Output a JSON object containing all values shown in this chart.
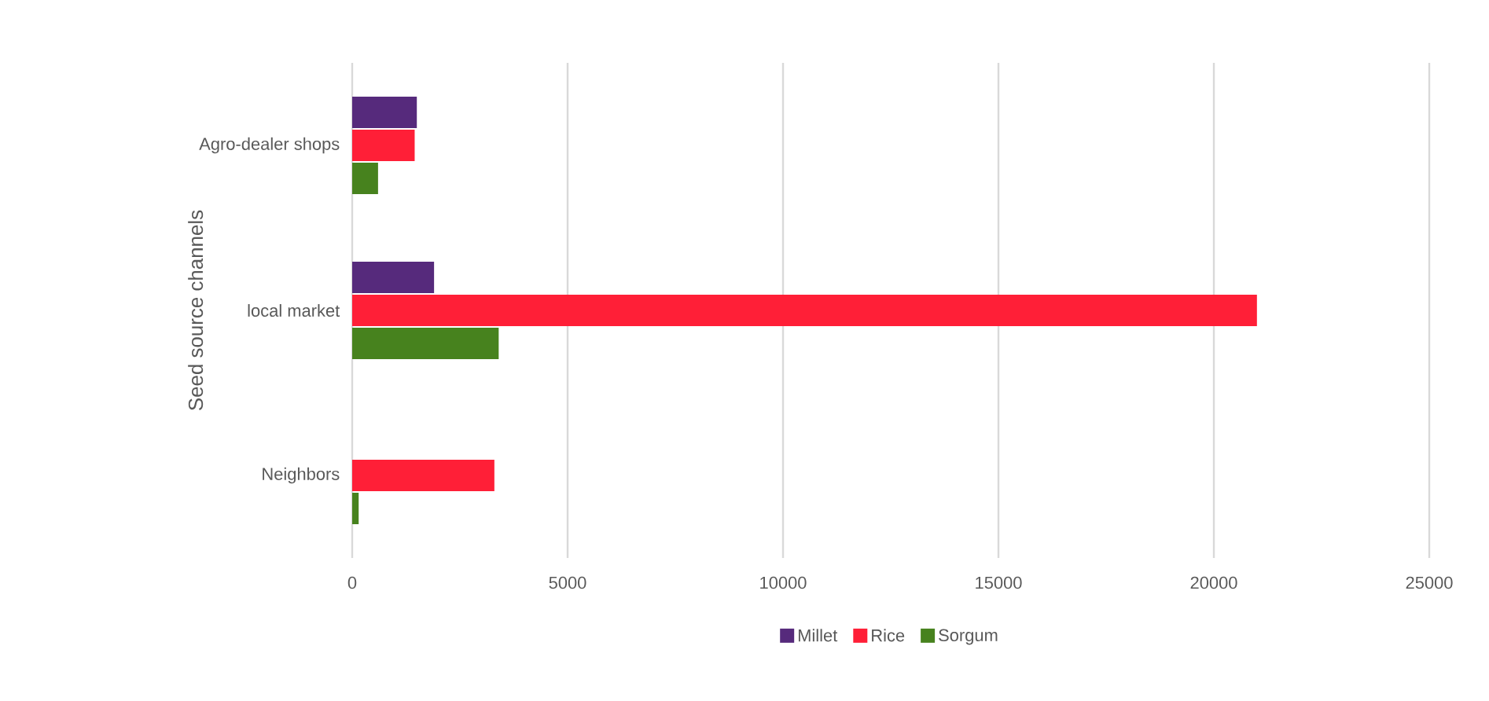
{
  "chart_data": {
    "type": "bar",
    "orientation": "horizontal",
    "ylabel": "Seed source channels",
    "categories": [
      "Agro-dealer shops",
      "local market",
      "Neighbors"
    ],
    "series": [
      {
        "name": "Millet",
        "color": "#562a7c",
        "values": [
          1500,
          1900,
          null
        ]
      },
      {
        "name": "Rice",
        "color": "#ff1f37",
        "values": [
          1450,
          21000,
          3300
        ]
      },
      {
        "name": "Sorgum",
        "color": "#47821e",
        "values": [
          600,
          3400,
          150
        ]
      }
    ],
    "xlim": [
      0,
      25000
    ],
    "xticks": [
      0,
      5000,
      10000,
      15000,
      20000,
      25000
    ],
    "grid": "x",
    "legend": "bottom"
  }
}
